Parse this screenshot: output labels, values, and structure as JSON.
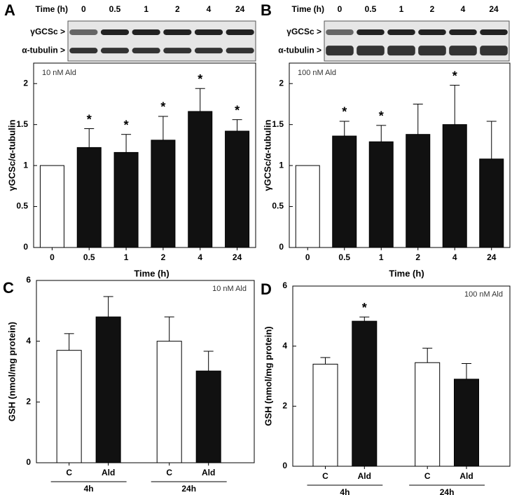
{
  "chart_data": [
    {
      "type": "bar",
      "panel": "A",
      "annotation": "10 nM Ald",
      "ylabel": "γGCSc/α-tubulin",
      "xlabel": "Time (h)",
      "blot_title": "Time (h)",
      "blot_rows": [
        "γGCSc >",
        "α-tubulin >"
      ],
      "categories": [
        "0",
        "0.5",
        "1",
        "2",
        "4",
        "24"
      ],
      "values": [
        1.0,
        1.22,
        1.16,
        1.31,
        1.66,
        1.42
      ],
      "errors": [
        0,
        0.23,
        0.22,
        0.29,
        0.28,
        0.14
      ],
      "colors": [
        "#ffffff",
        "#111111",
        "#111111",
        "#111111",
        "#111111",
        "#111111"
      ],
      "significance": [
        null,
        "*",
        "*",
        "*",
        "*",
        "*"
      ],
      "ylim": [
        0,
        2.25
      ],
      "yticks": [
        0,
        0.5,
        1,
        1.5,
        2
      ]
    },
    {
      "type": "bar",
      "panel": "B",
      "annotation": "100 nM Ald",
      "ylabel": "γGCSc/α-tubulin",
      "xlabel": "Time (h)",
      "blot_title": "Time (h)",
      "blot_rows": [
        "γGCSc >",
        "α-tubulin >"
      ],
      "categories": [
        "0",
        "0.5",
        "1",
        "2",
        "4",
        "24"
      ],
      "values": [
        1.0,
        1.36,
        1.29,
        1.38,
        1.5,
        1.08
      ],
      "errors": [
        0,
        0.18,
        0.2,
        0.37,
        0.48,
        0.46
      ],
      "colors": [
        "#ffffff",
        "#111111",
        "#111111",
        "#111111",
        "#111111",
        "#111111"
      ],
      "significance": [
        null,
        "*",
        "*",
        null,
        "*",
        null
      ],
      "ylim": [
        0,
        2.25
      ],
      "yticks": [
        0,
        0.5,
        1,
        1.5,
        2
      ]
    },
    {
      "type": "bar",
      "panel": "C",
      "annotation": "10 nM Ald",
      "ylabel": "GSH (nmol/mg protein)",
      "categories": [
        "C",
        "Ald",
        "C",
        "Ald"
      ],
      "group_labels": [
        "4h",
        "24h"
      ],
      "values": [
        3.7,
        4.8,
        4.0,
        3.02
      ],
      "errors": [
        0.55,
        0.67,
        0.8,
        0.65
      ],
      "colors": [
        "#ffffff",
        "#111111",
        "#ffffff",
        "#111111"
      ],
      "significance": [
        null,
        null,
        null,
        null
      ],
      "ylim": [
        0,
        6
      ],
      "yticks": [
        0,
        2,
        4,
        6
      ]
    },
    {
      "type": "bar",
      "panel": "D",
      "annotation": "100 nM Ald",
      "ylabel": "GSH (nmol/mg protein)",
      "categories": [
        "C",
        "Ald",
        "C",
        "Ald"
      ],
      "group_labels": [
        "4h",
        "24h"
      ],
      "values": [
        3.4,
        4.83,
        3.45,
        2.9
      ],
      "errors": [
        0.22,
        0.14,
        0.48,
        0.52
      ],
      "colors": [
        "#ffffff",
        "#111111",
        "#ffffff",
        "#111111"
      ],
      "significance": [
        null,
        "*",
        null,
        null
      ],
      "ylim": [
        0,
        6
      ],
      "yticks": [
        0,
        2,
        4,
        6
      ]
    }
  ]
}
